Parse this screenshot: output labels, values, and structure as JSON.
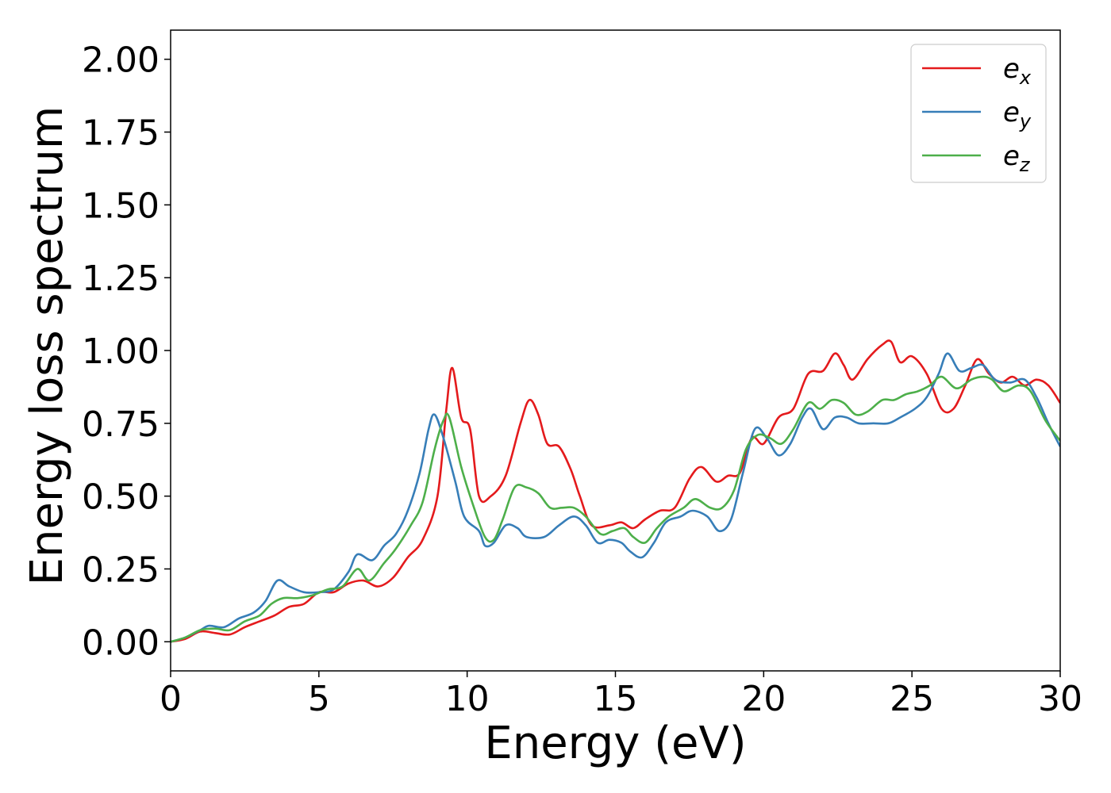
{
  "chart_data": {
    "type": "line",
    "title": "",
    "xlabel": "Energy (eV)",
    "ylabel": "Energy loss spectrum",
    "xlim": [
      0,
      30
    ],
    "ylim": [
      -0.1,
      2.1
    ],
    "xticks": [
      0,
      5,
      10,
      15,
      20,
      25,
      30
    ],
    "xtick_labels": [
      "0",
      "5",
      "10",
      "15",
      "20",
      "25",
      "30"
    ],
    "yticks": [
      0.0,
      0.25,
      0.5,
      0.75,
      1.0,
      1.25,
      1.5,
      1.75,
      2.0
    ],
    "ytick_labels": [
      "0.00",
      "0.25",
      "0.50",
      "0.75",
      "1.00",
      "1.25",
      "1.50",
      "1.75",
      "2.00"
    ],
    "grid": false,
    "legend_position": "top-right",
    "colors": {
      "e_x": "#e41a1c",
      "e_y": "#377eb8",
      "e_z": "#4daf4a"
    },
    "series": [
      {
        "name": "e_x",
        "legend_base": "e",
        "legend_sub": "x",
        "points": [
          [
            0,
            0
          ],
          [
            0.5,
            0.01
          ],
          [
            1,
            0.035
          ],
          [
            1.5,
            0.03
          ],
          [
            2,
            0.025
          ],
          [
            2.5,
            0.05
          ],
          [
            3,
            0.07
          ],
          [
            3.5,
            0.09
          ],
          [
            4,
            0.12
          ],
          [
            4.5,
            0.13
          ],
          [
            5,
            0.17
          ],
          [
            5.5,
            0.17
          ],
          [
            6,
            0.2
          ],
          [
            6.5,
            0.21
          ],
          [
            7,
            0.19
          ],
          [
            7.5,
            0.22
          ],
          [
            8,
            0.29
          ],
          [
            8.5,
            0.35
          ],
          [
            9,
            0.5
          ],
          [
            9.3,
            0.8
          ],
          [
            9.5,
            0.94
          ],
          [
            9.8,
            0.77
          ],
          [
            10.1,
            0.73
          ],
          [
            10.4,
            0.5
          ],
          [
            10.8,
            0.5
          ],
          [
            11.3,
            0.57
          ],
          [
            11.8,
            0.75
          ],
          [
            12.1,
            0.83
          ],
          [
            12.4,
            0.78
          ],
          [
            12.7,
            0.68
          ],
          [
            13.1,
            0.67
          ],
          [
            13.5,
            0.59
          ],
          [
            13.8,
            0.5
          ],
          [
            14.2,
            0.4
          ],
          [
            14.8,
            0.4
          ],
          [
            15.2,
            0.41
          ],
          [
            15.6,
            0.39
          ],
          [
            16,
            0.42
          ],
          [
            16.5,
            0.45
          ],
          [
            17,
            0.46
          ],
          [
            17.5,
            0.56
          ],
          [
            17.9,
            0.6
          ],
          [
            18.4,
            0.55
          ],
          [
            18.8,
            0.57
          ],
          [
            19.2,
            0.58
          ],
          [
            19.6,
            0.7
          ],
          [
            20,
            0.68
          ],
          [
            20.5,
            0.77
          ],
          [
            21,
            0.8
          ],
          [
            21.5,
            0.92
          ],
          [
            22,
            0.93
          ],
          [
            22.4,
            0.99
          ],
          [
            22.7,
            0.95
          ],
          [
            23,
            0.9
          ],
          [
            23.5,
            0.97
          ],
          [
            24,
            1.02
          ],
          [
            24.3,
            1.03
          ],
          [
            24.6,
            0.96
          ],
          [
            25,
            0.98
          ],
          [
            25.5,
            0.92
          ],
          [
            26,
            0.8
          ],
          [
            26.4,
            0.8
          ],
          [
            26.8,
            0.88
          ],
          [
            27.2,
            0.97
          ],
          [
            27.6,
            0.92
          ],
          [
            28,
            0.89
          ],
          [
            28.4,
            0.91
          ],
          [
            28.8,
            0.88
          ],
          [
            29.2,
            0.9
          ],
          [
            29.6,
            0.88
          ],
          [
            30,
            0.82
          ]
        ]
      },
      {
        "name": "e_y",
        "legend_base": "e",
        "legend_sub": "y",
        "points": [
          [
            0,
            0
          ],
          [
            0.5,
            0.015
          ],
          [
            1,
            0.04
          ],
          [
            1.3,
            0.055
          ],
          [
            1.8,
            0.05
          ],
          [
            2.3,
            0.08
          ],
          [
            2.8,
            0.1
          ],
          [
            3.2,
            0.14
          ],
          [
            3.6,
            0.21
          ],
          [
            4,
            0.19
          ],
          [
            4.5,
            0.17
          ],
          [
            5,
            0.17
          ],
          [
            5.5,
            0.18
          ],
          [
            6,
            0.24
          ],
          [
            6.3,
            0.3
          ],
          [
            6.8,
            0.28
          ],
          [
            7.2,
            0.33
          ],
          [
            7.6,
            0.37
          ],
          [
            8,
            0.45
          ],
          [
            8.4,
            0.58
          ],
          [
            8.7,
            0.73
          ],
          [
            8.9,
            0.78
          ],
          [
            9.2,
            0.7
          ],
          [
            9.6,
            0.55
          ],
          [
            9.9,
            0.43
          ],
          [
            10.4,
            0.38
          ],
          [
            10.6,
            0.33
          ],
          [
            10.9,
            0.34
          ],
          [
            11.3,
            0.4
          ],
          [
            11.7,
            0.39
          ],
          [
            12,
            0.36
          ],
          [
            12.6,
            0.36
          ],
          [
            13.1,
            0.4
          ],
          [
            13.6,
            0.43
          ],
          [
            14,
            0.4
          ],
          [
            14.4,
            0.34
          ],
          [
            14.8,
            0.35
          ],
          [
            15.2,
            0.34
          ],
          [
            15.5,
            0.31
          ],
          [
            15.9,
            0.29
          ],
          [
            16.3,
            0.34
          ],
          [
            16.7,
            0.41
          ],
          [
            17.2,
            0.43
          ],
          [
            17.6,
            0.45
          ],
          [
            18.1,
            0.43
          ],
          [
            18.5,
            0.38
          ],
          [
            18.9,
            0.42
          ],
          [
            19.3,
            0.58
          ],
          [
            19.7,
            0.73
          ],
          [
            20.1,
            0.7
          ],
          [
            20.5,
            0.64
          ],
          [
            20.9,
            0.68
          ],
          [
            21.3,
            0.77
          ],
          [
            21.6,
            0.8
          ],
          [
            22,
            0.73
          ],
          [
            22.4,
            0.77
          ],
          [
            22.8,
            0.77
          ],
          [
            23.2,
            0.75
          ],
          [
            23.7,
            0.75
          ],
          [
            24.2,
            0.75
          ],
          [
            24.6,
            0.77
          ],
          [
            25.1,
            0.8
          ],
          [
            25.5,
            0.84
          ],
          [
            25.9,
            0.92
          ],
          [
            26.2,
            0.99
          ],
          [
            26.6,
            0.93
          ],
          [
            27,
            0.94
          ],
          [
            27.4,
            0.95
          ],
          [
            27.8,
            0.9
          ],
          [
            28.3,
            0.89
          ],
          [
            28.8,
            0.9
          ],
          [
            29.2,
            0.84
          ],
          [
            29.6,
            0.75
          ],
          [
            30,
            0.67
          ]
        ]
      },
      {
        "name": "e_z",
        "legend_base": "e",
        "legend_sub": "z",
        "points": [
          [
            0,
            0
          ],
          [
            0.5,
            0.015
          ],
          [
            1,
            0.04
          ],
          [
            1.5,
            0.045
          ],
          [
            2,
            0.04
          ],
          [
            2.5,
            0.07
          ],
          [
            3,
            0.09
          ],
          [
            3.4,
            0.13
          ],
          [
            3.8,
            0.15
          ],
          [
            4.3,
            0.15
          ],
          [
            4.8,
            0.16
          ],
          [
            5.3,
            0.18
          ],
          [
            5.8,
            0.19
          ],
          [
            6.3,
            0.25
          ],
          [
            6.7,
            0.21
          ],
          [
            7.2,
            0.27
          ],
          [
            7.6,
            0.32
          ],
          [
            8.1,
            0.4
          ],
          [
            8.5,
            0.48
          ],
          [
            8.9,
            0.66
          ],
          [
            9.2,
            0.76
          ],
          [
            9.4,
            0.77
          ],
          [
            9.8,
            0.6
          ],
          [
            10.2,
            0.47
          ],
          [
            10.6,
            0.36
          ],
          [
            10.9,
            0.35
          ],
          [
            11.2,
            0.42
          ],
          [
            11.6,
            0.53
          ],
          [
            12,
            0.53
          ],
          [
            12.4,
            0.51
          ],
          [
            12.8,
            0.46
          ],
          [
            13.2,
            0.46
          ],
          [
            13.6,
            0.46
          ],
          [
            14,
            0.43
          ],
          [
            14.5,
            0.37
          ],
          [
            14.9,
            0.38
          ],
          [
            15.3,
            0.39
          ],
          [
            15.6,
            0.36
          ],
          [
            16,
            0.34
          ],
          [
            16.4,
            0.39
          ],
          [
            16.8,
            0.43
          ],
          [
            17.3,
            0.46
          ],
          [
            17.7,
            0.49
          ],
          [
            18.2,
            0.46
          ],
          [
            18.6,
            0.46
          ],
          [
            19,
            0.52
          ],
          [
            19.4,
            0.66
          ],
          [
            19.8,
            0.71
          ],
          [
            20.2,
            0.7
          ],
          [
            20.6,
            0.68
          ],
          [
            21,
            0.73
          ],
          [
            21.5,
            0.82
          ],
          [
            21.9,
            0.8
          ],
          [
            22.3,
            0.83
          ],
          [
            22.7,
            0.82
          ],
          [
            23.1,
            0.78
          ],
          [
            23.5,
            0.79
          ],
          [
            24,
            0.83
          ],
          [
            24.4,
            0.83
          ],
          [
            24.8,
            0.85
          ],
          [
            25.2,
            0.86
          ],
          [
            25.6,
            0.88
          ],
          [
            26,
            0.91
          ],
          [
            26.5,
            0.87
          ],
          [
            27,
            0.9
          ],
          [
            27.4,
            0.91
          ],
          [
            27.7,
            0.9
          ],
          [
            28.1,
            0.86
          ],
          [
            28.6,
            0.88
          ],
          [
            29,
            0.86
          ],
          [
            29.5,
            0.76
          ],
          [
            30,
            0.69
          ]
        ]
      }
    ]
  }
}
